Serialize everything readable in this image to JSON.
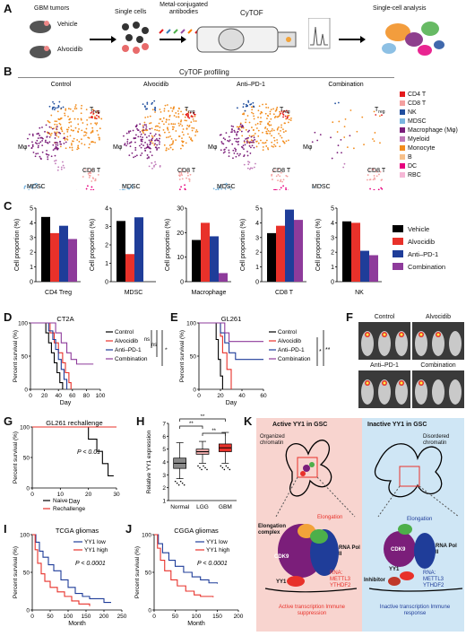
{
  "panels": {
    "A": {
      "letter": "A",
      "gbm_tumors": "GBM tumors",
      "vehicle": "Vehicle",
      "alvocidib": "Alvocidib",
      "single_cells": "Single cells",
      "antibodies": "Metal-conjugated antibodies",
      "cytof": "CyTOF",
      "single_cell_analysis": "Single-cell analysis"
    },
    "B": {
      "letter": "B",
      "header": "CyTOF profiling",
      "conditions": [
        "Control",
        "Alvocidib",
        "Anti–PD-1",
        "Combination"
      ],
      "labels": {
        "treg": "T",
        "treg_sub": "reg",
        "cd8": "CD8 T",
        "mdsc": "MDSC",
        "mphi": "Mφ"
      },
      "legend": [
        {
          "label": "CD4 T",
          "color": "#e41a1c"
        },
        {
          "label": "CD8 T",
          "color": "#f4a0a0"
        },
        {
          "label": "NK",
          "color": "#1f4e9e"
        },
        {
          "label": "MDSC",
          "color": "#7ab6e0"
        },
        {
          "label": "Macrophage (Mφ)",
          "color": "#7b1e7a"
        },
        {
          "label": "Myeloid",
          "color": "#c07ab8"
        },
        {
          "label": "Monocyte",
          "color": "#f28c1c"
        },
        {
          "label": "B",
          "color": "#f7c08a"
        },
        {
          "label": "DC",
          "color": "#e6007e"
        },
        {
          "label": "RBC",
          "color": "#f5b7d6"
        }
      ]
    },
    "C": {
      "letter": "C",
      "ylabel": "Cell proportion (%)",
      "legend": [
        {
          "label": "Vehicle",
          "color": "#000000"
        },
        {
          "label": "Alvocidib",
          "color": "#e8312a"
        },
        {
          "label": "Anti–PD-1",
          "color": "#1f3d99"
        },
        {
          "label": "Combination",
          "color": "#8e3b9b"
        }
      ]
    },
    "D": {
      "letter": "D",
      "title": "CT2A",
      "ylabel": "Percent survival (%)",
      "xlabel": "Day",
      "legend": [
        "Control",
        "Alvocidib",
        "Anti–PD-1",
        "Combination"
      ],
      "sig": [
        "ns",
        "ns",
        "**"
      ]
    },
    "E": {
      "letter": "E",
      "title": "GL261",
      "ylabel": "Percent survival (%)",
      "xlabel": "Day",
      "legend": [
        "Control",
        "Alvocidib",
        "Anti–PD-1",
        "Combination"
      ],
      "sig": [
        "*",
        "**"
      ]
    },
    "F": {
      "letter": "F",
      "labels": [
        "Control",
        "Alvocidib",
        "Anti–PD-1",
        "Combination"
      ]
    },
    "G": {
      "letter": "G",
      "title": "GL261 rechallenge",
      "ylabel": "Percent survival (%)",
      "xlabel": "Day",
      "pvalue": "P < 0.01",
      "legend": [
        "Naive",
        "Rechallenge"
      ]
    },
    "H": {
      "letter": "H",
      "ylabel": "Relative YY1 expression",
      "sig": [
        "**",
        "**",
        "**"
      ]
    },
    "I": {
      "letter": "I",
      "title": "TCGA gliomas",
      "ylabel": "Percent survival (%)",
      "xlabel": "Month",
      "pvalue": "P < 0.0001",
      "legend": [
        "YY1 low",
        "YY1 high"
      ]
    },
    "J": {
      "letter": "J",
      "title": "CGGA gliomas",
      "ylabel": "Percent survival (%)",
      "xlabel": "Month",
      "pvalue": "P < 0.0001",
      "legend": [
        "YY1 low",
        "YY1 high"
      ]
    },
    "K": {
      "letter": "K",
      "active_title": "Active YY1 in GSC",
      "inactive_title": "Inactive YY1 in GSC",
      "organized": "Organized chromatin",
      "disordered": "Disordered chromatin",
      "elong_complex": "Elongation complex",
      "elongation": "Elongation",
      "cdk9": "CDK9",
      "rnapol": "RNA Pol II",
      "yy1": "YY1",
      "rna_mods": "RNA: METTL3 YTHDF2",
      "inhibitor": "Inhibitor",
      "active_out": "Active transcription Immune suppression",
      "inactive_out": "Inactive transcription Immune response"
    }
  },
  "chart_data": [
    {
      "type": "bar",
      "title": "",
      "xlabel": "CD4 Treg",
      "ylabel": "Cell proportion (%)",
      "ylim": [
        0,
        5
      ],
      "yticks": [
        0,
        1,
        2,
        3,
        4,
        5
      ],
      "series": [
        {
          "name": "Vehicle",
          "values": [
            4.4
          ]
        },
        {
          "name": "Alvocidib",
          "values": [
            3.3
          ]
        },
        {
          "name": "Anti–PD-1",
          "values": [
            3.8
          ]
        },
        {
          "name": "Combination",
          "values": [
            2.9
          ]
        }
      ]
    },
    {
      "type": "bar",
      "title": "",
      "xlabel": "MDSC",
      "ylabel": "",
      "ylim": [
        0,
        4
      ],
      "yticks": [
        0,
        1,
        2,
        3,
        4
      ],
      "series": [
        {
          "name": "Vehicle",
          "values": [
            3.3
          ]
        },
        {
          "name": "Alvocidib",
          "values": [
            1.5
          ]
        },
        {
          "name": "Anti–PD-1",
          "values": [
            3.5
          ]
        },
        {
          "name": "Combination",
          "values": [
            0
          ]
        }
      ]
    },
    {
      "type": "bar",
      "title": "",
      "xlabel": "Macrophage",
      "ylabel": "",
      "ylim": [
        0,
        30
      ],
      "yticks": [
        0,
        10,
        20,
        30
      ],
      "series": [
        {
          "name": "Vehicle",
          "values": [
            17
          ]
        },
        {
          "name": "Alvocidib",
          "values": [
            24
          ]
        },
        {
          "name": "Anti–PD-1",
          "values": [
            18.5
          ]
        },
        {
          "name": "Combination",
          "values": [
            3.5
          ]
        }
      ]
    },
    {
      "type": "bar",
      "title": "",
      "xlabel": "CD8 T",
      "ylabel": "",
      "ylim": [
        0,
        5
      ],
      "yticks": [
        0,
        1,
        2,
        3,
        4,
        5
      ],
      "series": [
        {
          "name": "Vehicle",
          "values": [
            3.3
          ]
        },
        {
          "name": "Alvocidib",
          "values": [
            3.8
          ]
        },
        {
          "name": "Anti–PD-1",
          "values": [
            4.9
          ]
        },
        {
          "name": "Combination",
          "values": [
            4.2
          ]
        }
      ]
    },
    {
      "type": "bar",
      "title": "",
      "xlabel": "NK",
      "ylabel": "",
      "ylim": [
        0,
        5
      ],
      "yticks": [
        0,
        1,
        2,
        3,
        4,
        5
      ],
      "series": [
        {
          "name": "Vehicle",
          "values": [
            4.1
          ]
        },
        {
          "name": "Alvocidib",
          "values": [
            4.0
          ]
        },
        {
          "name": "Anti–PD-1",
          "values": [
            2.1
          ]
        },
        {
          "name": "Combination",
          "values": [
            1.8
          ]
        }
      ]
    },
    {
      "type": "line",
      "title": "CT2A",
      "xlabel": "Day",
      "ylabel": "Percent survival (%)",
      "xlim": [
        0,
        100
      ],
      "ylim": [
        0,
        100
      ],
      "xticks": [
        0,
        20,
        40,
        60,
        80,
        100
      ],
      "yticks": [
        0,
        50,
        100
      ],
      "series": [
        {
          "name": "Control",
          "color": "#000000",
          "points": [
            [
              0,
              100
            ],
            [
              20,
              100
            ],
            [
              22,
              85
            ],
            [
              26,
              70
            ],
            [
              30,
              55
            ],
            [
              34,
              40
            ],
            [
              38,
              25
            ],
            [
              42,
              10
            ],
            [
              46,
              0
            ]
          ]
        },
        {
          "name": "Alvocidib",
          "color": "#e8312a",
          "points": [
            [
              0,
              100
            ],
            [
              24,
              100
            ],
            [
              28,
              85
            ],
            [
              34,
              70
            ],
            [
              40,
              55
            ],
            [
              46,
              40
            ],
            [
              50,
              25
            ],
            [
              55,
              10
            ],
            [
              58,
              0
            ]
          ]
        },
        {
          "name": "Anti–PD-1",
          "color": "#1f3d99",
          "points": [
            [
              0,
              100
            ],
            [
              22,
              100
            ],
            [
              26,
              88
            ],
            [
              32,
              75
            ],
            [
              36,
              60
            ],
            [
              40,
              45
            ],
            [
              44,
              30
            ],
            [
              48,
              15
            ],
            [
              52,
              0
            ]
          ]
        },
        {
          "name": "Combination",
          "color": "#8e3b9b",
          "points": [
            [
              0,
              100
            ],
            [
              30,
              100
            ],
            [
              36,
              85
            ],
            [
              44,
              70
            ],
            [
              52,
              55
            ],
            [
              58,
              45
            ],
            [
              66,
              38
            ],
            [
              90,
              38
            ]
          ]
        }
      ]
    },
    {
      "type": "line",
      "title": "GL261",
      "xlabel": "Day",
      "ylabel": "Percent survival (%)",
      "xlim": [
        0,
        60
      ],
      "ylim": [
        0,
        100
      ],
      "xticks": [
        0,
        20,
        40,
        60
      ],
      "yticks": [
        0,
        50,
        100
      ],
      "series": [
        {
          "name": "Control",
          "color": "#000000",
          "points": [
            [
              0,
              100
            ],
            [
              14,
              100
            ],
            [
              16,
              75
            ],
            [
              18,
              45
            ],
            [
              20,
              20
            ],
            [
              22,
              0
            ]
          ]
        },
        {
          "name": "Alvocidib",
          "color": "#e8312a",
          "points": [
            [
              0,
              100
            ],
            [
              18,
              100
            ],
            [
              20,
              80
            ],
            [
              22,
              55
            ],
            [
              26,
              30
            ],
            [
              30,
              0
            ]
          ]
        },
        {
          "name": "Anti–PD-1",
          "color": "#1f3d99",
          "points": [
            [
              0,
              100
            ],
            [
              18,
              100
            ],
            [
              20,
              85
            ],
            [
              24,
              70
            ],
            [
              28,
              55
            ],
            [
              34,
              45
            ],
            [
              60,
              45
            ]
          ]
        },
        {
          "name": "Combination",
          "color": "#8e3b9b",
          "points": [
            [
              0,
              100
            ],
            [
              20,
              100
            ],
            [
              24,
              85
            ],
            [
              28,
              72
            ],
            [
              60,
              72
            ]
          ]
        }
      ]
    },
    {
      "type": "line",
      "title": "GL261 rechallenge",
      "xlabel": "Day",
      "ylabel": "Percent survival (%)",
      "xlim": [
        0,
        30
      ],
      "ylim": [
        0,
        100
      ],
      "xticks": [
        0,
        10,
        20,
        30
      ],
      "yticks": [
        0,
        50,
        100
      ],
      "series": [
        {
          "name": "Naive",
          "color": "#000000",
          "points": [
            [
              0,
              100
            ],
            [
              18,
              100
            ],
            [
              20,
              80
            ],
            [
              23,
              60
            ],
            [
              25,
              40
            ],
            [
              27,
              20
            ],
            [
              29,
              20
            ]
          ]
        },
        {
          "name": "Rechallenge",
          "color": "#e8312a",
          "points": [
            [
              0,
              100
            ],
            [
              30,
              100
            ]
          ]
        }
      ]
    },
    {
      "type": "box",
      "title": "",
      "xlabel": "",
      "ylabel": "Relative YY1 expression",
      "categories": [
        "Normal",
        "LGG",
        "GBM"
      ],
      "ylim": [
        1,
        7
      ],
      "yticks": [
        1,
        2,
        3,
        4,
        5,
        6,
        7
      ],
      "boxes": [
        {
          "category": "Normal",
          "min": 2.7,
          "q1": 3.5,
          "median": 3.9,
          "q3": 4.3,
          "max": 5.5,
          "color": "#8a8a8a"
        },
        {
          "category": "LGG",
          "min": 3.9,
          "q1": 4.6,
          "median": 4.8,
          "q3": 5.0,
          "max": 5.6,
          "color": "#e8a7a7"
        },
        {
          "category": "GBM",
          "min": 3.9,
          "q1": 4.8,
          "median": 5.1,
          "q3": 5.4,
          "max": 6.3,
          "color": "#e8312a"
        }
      ]
    },
    {
      "type": "line",
      "title": "TCGA gliomas",
      "xlabel": "Month",
      "ylabel": "Percent survival (%)",
      "xlim": [
        0,
        250
      ],
      "ylim": [
        0,
        100
      ],
      "xticks": [
        0,
        50,
        100,
        150,
        200,
        250
      ],
      "yticks": [
        0,
        50,
        100
      ],
      "series": [
        {
          "name": "YY1 low",
          "color": "#1f3d99",
          "points": [
            [
              0,
              100
            ],
            [
              10,
              90
            ],
            [
              20,
              78
            ],
            [
              30,
              70
            ],
            [
              45,
              60
            ],
            [
              60,
              52
            ],
            [
              80,
              40
            ],
            [
              100,
              30
            ],
            [
              120,
              22
            ],
            [
              140,
              18
            ],
            [
              160,
              15
            ],
            [
              200,
              10
            ],
            [
              220,
              10
            ]
          ]
        },
        {
          "name": "YY1 high",
          "color": "#e8312a",
          "points": [
            [
              0,
              100
            ],
            [
              8,
              80
            ],
            [
              15,
              62
            ],
            [
              25,
              48
            ],
            [
              35,
              38
            ],
            [
              50,
              30
            ],
            [
              70,
              24
            ],
            [
              90,
              18
            ],
            [
              110,
              12
            ],
            [
              130,
              8
            ],
            [
              160,
              5
            ]
          ]
        }
      ]
    },
    {
      "type": "line",
      "title": "CGGA gliomas",
      "xlabel": "Month",
      "ylabel": "Percent survival (%)",
      "xlim": [
        0,
        200
      ],
      "ylim": [
        0,
        100
      ],
      "xticks": [
        0,
        50,
        100,
        150,
        200
      ],
      "yticks": [
        0,
        50,
        100
      ],
      "series": [
        {
          "name": "YY1 low",
          "color": "#1f3d99",
          "points": [
            [
              0,
              100
            ],
            [
              10,
              88
            ],
            [
              20,
              76
            ],
            [
              35,
              66
            ],
            [
              50,
              58
            ],
            [
              70,
              50
            ],
            [
              90,
              44
            ],
            [
              110,
              40
            ],
            [
              130,
              36
            ],
            [
              150,
              35
            ]
          ]
        },
        {
          "name": "YY1 high",
          "color": "#e8312a",
          "points": [
            [
              0,
              100
            ],
            [
              8,
              82
            ],
            [
              15,
              66
            ],
            [
              25,
              52
            ],
            [
              40,
              40
            ],
            [
              55,
              32
            ],
            [
              75,
              25
            ],
            [
              95,
              20
            ],
            [
              110,
              18
            ],
            [
              140,
              17
            ]
          ]
        }
      ]
    }
  ]
}
